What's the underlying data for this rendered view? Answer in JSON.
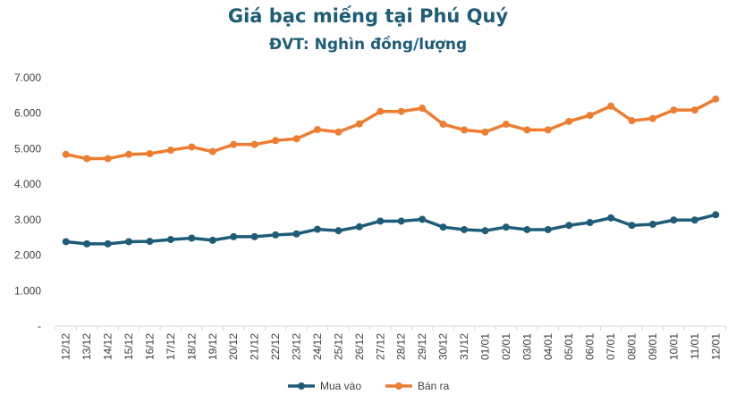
{
  "chart_data": {
    "type": "line",
    "title": "Giá bạc miếng tại Phú Quý",
    "subtitle": "ĐVT: Nghìn đồng/lượng",
    "categories": [
      "12/12",
      "13/12",
      "14/12",
      "15/12",
      "16/12",
      "17/12",
      "18/12",
      "19/12",
      "20/12",
      "21/12",
      "22/12",
      "23/12",
      "24/12",
      "25/12",
      "26/12",
      "27/12",
      "28/12",
      "29/12",
      "30/12",
      "31/12",
      "01/01",
      "02/01",
      "03/01",
      "04/01",
      "05/01",
      "06/01",
      "07/01",
      "08/01",
      "09/01",
      "10/01",
      "11/01",
      "12/01"
    ],
    "series": [
      {
        "name": "Mua vào",
        "color": "#1f5c78",
        "values": [
          2380,
          2320,
          2320,
          2380,
          2390,
          2440,
          2480,
          2420,
          2520,
          2520,
          2570,
          2600,
          2730,
          2690,
          2800,
          2960,
          2960,
          3010,
          2790,
          2720,
          2690,
          2790,
          2720,
          2720,
          2840,
          2920,
          3050,
          2840,
          2870,
          2990,
          2990,
          3140
        ]
      },
      {
        "name": "Bán ra",
        "color": "#ed7d31",
        "values": [
          4840,
          4720,
          4720,
          4840,
          4860,
          4960,
          5050,
          4920,
          5120,
          5120,
          5230,
          5280,
          5540,
          5470,
          5700,
          6050,
          6050,
          6140,
          5690,
          5530,
          5470,
          5690,
          5530,
          5530,
          5770,
          5940,
          6200,
          5790,
          5850,
          6090,
          6090,
          6400
        ]
      }
    ],
    "ylim": [
      0,
      7000
    ],
    "yticks": [
      "-",
      "1.000",
      "2.000",
      "3.000",
      "4.000",
      "5.000",
      "6.000",
      "7.000"
    ],
    "grid": false,
    "legend": "bottom"
  }
}
